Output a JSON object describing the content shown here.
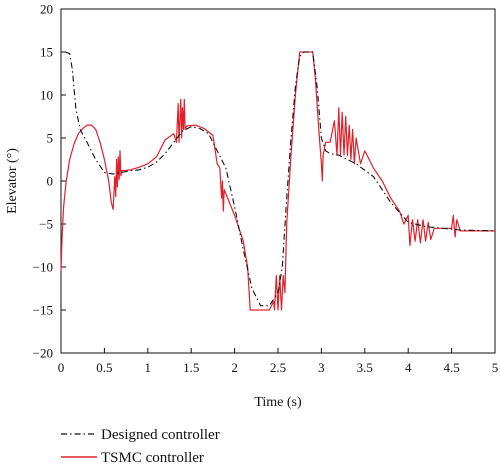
{
  "chart_data": {
    "type": "line",
    "title": "",
    "xlabel": "Time (s)",
    "ylabel": "Elevator (°)",
    "xlim": [
      0,
      5
    ],
    "ylim": [
      -20,
      20
    ],
    "x_ticks": [
      0,
      0.5,
      1,
      1.5,
      2,
      2.5,
      3,
      3.5,
      4,
      4.5,
      5
    ],
    "x_tick_labels": [
      "0",
      "0.5",
      "1",
      "1.5",
      "2",
      "2.5",
      "3",
      "3.5",
      "4",
      "4.5",
      "5"
    ],
    "y_ticks": [
      -20,
      -15,
      -10,
      -5,
      0,
      5,
      10,
      15,
      20
    ],
    "y_tick_labels": [
      "−20",
      "−15",
      "−10",
      "−5",
      "0",
      "5",
      "10",
      "15",
      "20"
    ],
    "grid": false,
    "legend_position": "bottom-left",
    "colors": {
      "designed": "#111111",
      "tsmc": "#e0202a"
    },
    "series": [
      {
        "name": "Designed controller",
        "style": "dash-dot",
        "points": [
          [
            0.05,
            15
          ],
          [
            0.1,
            14.8
          ],
          [
            0.13,
            13
          ],
          [
            0.17,
            8.5
          ],
          [
            0.22,
            6
          ],
          [
            0.3,
            4.5
          ],
          [
            0.4,
            2.5
          ],
          [
            0.5,
            1.0
          ],
          [
            0.6,
            0.8
          ],
          [
            0.7,
            1.0
          ],
          [
            0.8,
            1.2
          ],
          [
            0.9,
            1.3
          ],
          [
            1.0,
            1.6
          ],
          [
            1.1,
            2.2
          ],
          [
            1.2,
            3.2
          ],
          [
            1.3,
            4.5
          ],
          [
            1.4,
            5.8
          ],
          [
            1.5,
            6.3
          ],
          [
            1.6,
            6.1
          ],
          [
            1.7,
            5.5
          ],
          [
            1.8,
            3.5
          ],
          [
            1.9,
            1.5
          ],
          [
            2.0,
            -3
          ],
          [
            2.1,
            -8
          ],
          [
            2.2,
            -12.5
          ],
          [
            2.3,
            -14.5
          ],
          [
            2.4,
            -14.5
          ],
          [
            2.5,
            -13
          ],
          [
            2.55,
            -10
          ],
          [
            2.6,
            -2
          ],
          [
            2.65,
            5
          ],
          [
            2.7,
            11
          ],
          [
            2.75,
            14.5
          ],
          [
            2.8,
            15
          ],
          [
            2.9,
            15
          ],
          [
            2.95,
            11
          ],
          [
            3.0,
            5
          ],
          [
            3.05,
            3.5
          ],
          [
            3.1,
            3.2
          ],
          [
            3.2,
            3.0
          ],
          [
            3.4,
            2.0
          ],
          [
            3.6,
            0.5
          ],
          [
            3.8,
            -2.5
          ],
          [
            4.0,
            -4.8
          ],
          [
            4.2,
            -5.3
          ],
          [
            4.4,
            -5.5
          ],
          [
            4.6,
            -5.7
          ],
          [
            5.0,
            -5.8
          ]
        ]
      },
      {
        "name": "TSMC controller",
        "style": "solid",
        "points": [
          [
            0.0,
            -10.5
          ],
          [
            0.01,
            -7
          ],
          [
            0.03,
            -3
          ],
          [
            0.06,
            0
          ],
          [
            0.1,
            2.5
          ],
          [
            0.15,
            4.3
          ],
          [
            0.2,
            5.5
          ],
          [
            0.25,
            6.1
          ],
          [
            0.3,
            6.5
          ],
          [
            0.35,
            6.5
          ],
          [
            0.4,
            6
          ],
          [
            0.45,
            4.5
          ],
          [
            0.5,
            2.5
          ],
          [
            0.55,
            0
          ],
          [
            0.58,
            -2.5
          ],
          [
            0.6,
            -3.3
          ],
          [
            0.62,
            0.5
          ],
          [
            0.63,
            -1.8
          ],
          [
            0.64,
            2.5
          ],
          [
            0.65,
            -0.7
          ],
          [
            0.66,
            2.8
          ],
          [
            0.67,
            0.2
          ],
          [
            0.68,
            3.5
          ],
          [
            0.69,
            0.6
          ],
          [
            0.7,
            1.2
          ],
          [
            0.8,
            1.3
          ],
          [
            0.9,
            1.6
          ],
          [
            1.0,
            2.0
          ],
          [
            1.1,
            2.8
          ],
          [
            1.2,
            4.8
          ],
          [
            1.3,
            5.5
          ],
          [
            1.33,
            4.5
          ],
          [
            1.35,
            9
          ],
          [
            1.36,
            4.5
          ],
          [
            1.38,
            9.5
          ],
          [
            1.39,
            5
          ],
          [
            1.4,
            8.5
          ],
          [
            1.41,
            6
          ],
          [
            1.42,
            9.5
          ],
          [
            1.43,
            6
          ],
          [
            1.45,
            6.4
          ],
          [
            1.55,
            6.5
          ],
          [
            1.65,
            6.1
          ],
          [
            1.75,
            5.3
          ],
          [
            1.8,
            2
          ],
          [
            1.83,
            1.5
          ],
          [
            1.85,
            -2
          ],
          [
            1.86,
            0
          ],
          [
            1.87,
            -3.5
          ],
          [
            1.88,
            -1
          ],
          [
            1.9,
            -1.5
          ],
          [
            2.0,
            -4
          ],
          [
            2.1,
            -7
          ],
          [
            2.15,
            -10
          ],
          [
            2.18,
            -15
          ],
          [
            2.3,
            -15
          ],
          [
            2.4,
            -15
          ],
          [
            2.45,
            -14
          ],
          [
            2.46,
            -15
          ],
          [
            2.48,
            -11
          ],
          [
            2.5,
            -15
          ],
          [
            2.52,
            -11
          ],
          [
            2.54,
            -15
          ],
          [
            2.56,
            -11
          ],
          [
            2.58,
            -13
          ],
          [
            2.6,
            -5
          ],
          [
            2.65,
            3
          ],
          [
            2.7,
            10
          ],
          [
            2.75,
            15
          ],
          [
            2.9,
            15
          ],
          [
            2.93,
            12
          ],
          [
            2.97,
            6
          ],
          [
            3.0,
            2
          ],
          [
            3.01,
            0
          ],
          [
            3.02,
            3
          ],
          [
            3.05,
            4.5
          ],
          [
            3.1,
            4.5
          ],
          [
            3.15,
            7
          ],
          [
            3.18,
            3
          ],
          [
            3.2,
            8.5
          ],
          [
            3.22,
            3
          ],
          [
            3.24,
            8
          ],
          [
            3.26,
            3
          ],
          [
            3.28,
            7.5
          ],
          [
            3.3,
            3
          ],
          [
            3.32,
            6.5
          ],
          [
            3.34,
            2.5
          ],
          [
            3.36,
            6
          ],
          [
            3.38,
            2
          ],
          [
            3.4,
            5
          ],
          [
            3.45,
            2
          ],
          [
            3.5,
            3.5
          ],
          [
            3.6,
            1.5
          ],
          [
            3.7,
            0
          ],
          [
            3.8,
            -2
          ],
          [
            3.9,
            -3.5
          ],
          [
            3.95,
            -5
          ],
          [
            4.0,
            -4
          ],
          [
            4.02,
            -7.5
          ],
          [
            4.05,
            -4.5
          ],
          [
            4.08,
            -7
          ],
          [
            4.11,
            -4.5
          ],
          [
            4.14,
            -7.2
          ],
          [
            4.17,
            -4.5
          ],
          [
            4.2,
            -7
          ],
          [
            4.23,
            -4.8
          ],
          [
            4.26,
            -6.8
          ],
          [
            4.3,
            -5.5
          ],
          [
            4.4,
            -5.5
          ],
          [
            4.5,
            -5.5
          ],
          [
            4.52,
            -4
          ],
          [
            4.54,
            -6.5
          ],
          [
            4.56,
            -4.5
          ],
          [
            4.6,
            -5.8
          ],
          [
            5.0,
            -5.8
          ]
        ]
      }
    ]
  }
}
